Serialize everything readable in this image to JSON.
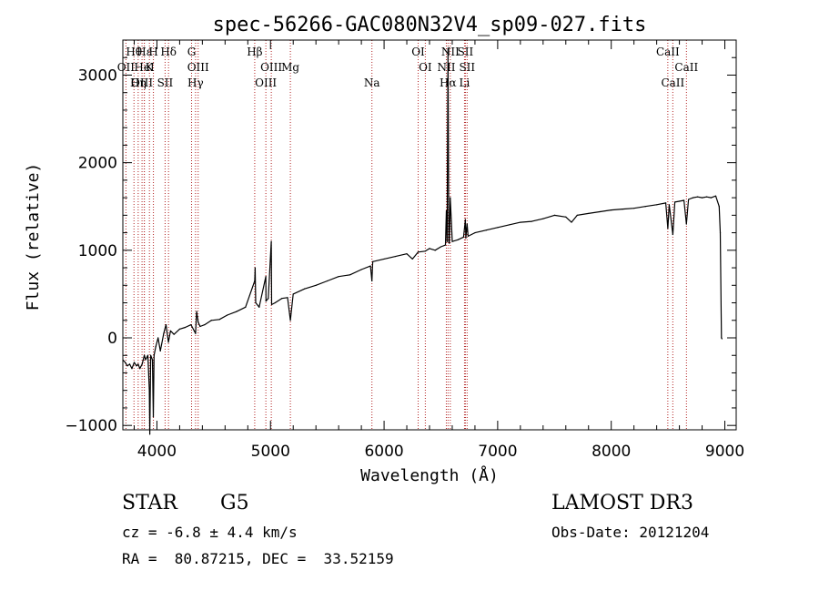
{
  "chart_data": {
    "type": "line",
    "title": "spec-56266-GAC080N32V4_sp09-027.fits",
    "xlabel": "Wavelength (Å)",
    "ylabel": "Flux (relative)",
    "xlim": [
      3700,
      9100
    ],
    "ylim": [
      -1050,
      3400
    ],
    "xticks": [
      4000,
      5000,
      6000,
      7000,
      8000,
      9000
    ],
    "yticks": [
      -1000,
      0,
      1000,
      2000,
      3000
    ],
    "line_color": "#000000",
    "marker_color": "#b22222",
    "series": [
      {
        "name": "flux",
        "x": [
          3700,
          3720,
          3740,
          3760,
          3780,
          3800,
          3820,
          3835,
          3850,
          3870,
          3889,
          3900,
          3920,
          3933,
          3937,
          3945,
          3960,
          3968,
          3975,
          3990,
          4010,
          4030,
          4060,
          4080,
          4101,
          4120,
          4150,
          4200,
          4250,
          4300,
          4340,
          4350,
          4363,
          4380,
          4420,
          4480,
          4550,
          4620,
          4700,
          4780,
          4861,
          4865,
          4870,
          4900,
          4959,
          4960,
          4980,
          5007,
          5010,
          5040,
          5100,
          5150,
          5175,
          5200,
          5300,
          5400,
          5500,
          5600,
          5700,
          5800,
          5880,
          5893,
          5900,
          6000,
          6100,
          6200,
          6250,
          6300,
          6363,
          6400,
          6450,
          6500,
          6540,
          6548,
          6555,
          6563,
          6570,
          6575,
          6583,
          6600,
          6650,
          6700,
          6716,
          6720,
          6731,
          6740,
          6800,
          6900,
          7000,
          7100,
          7200,
          7300,
          7400,
          7500,
          7600,
          7650,
          7700,
          7800,
          7900,
          8000,
          8100,
          8200,
          8300,
          8400,
          8480,
          8498,
          8510,
          8542,
          8560,
          8600,
          8640,
          8662,
          8680,
          8720,
          8760,
          8800,
          8840,
          8880,
          8920,
          8950,
          8960,
          8970,
          8975
        ],
        "values": [
          -250,
          -280,
          -320,
          -300,
          -350,
          -280,
          -320,
          -300,
          -350,
          -300,
          -200,
          -250,
          -200,
          -600,
          -1100,
          -200,
          -250,
          -900,
          -200,
          -100,
          0,
          -150,
          50,
          150,
          -50,
          80,
          40,
          100,
          120,
          150,
          50,
          300,
          180,
          130,
          150,
          200,
          210,
          260,
          300,
          350,
          650,
          800,
          400,
          350,
          700,
          420,
          450,
          1100,
          380,
          400,
          450,
          460,
          200,
          500,
          560,
          600,
          650,
          700,
          720,
          780,
          820,
          650,
          870,
          900,
          930,
          960,
          900,
          980,
          990,
          1020,
          1000,
          1040,
          1060,
          1450,
          1100,
          3300,
          1100,
          1080,
          1600,
          1100,
          1120,
          1150,
          1350,
          1140,
          1300,
          1160,
          1200,
          1230,
          1260,
          1290,
          1320,
          1330,
          1360,
          1400,
          1380,
          1320,
          1400,
          1420,
          1440,
          1460,
          1470,
          1480,
          1500,
          1520,
          1540,
          1250,
          1520,
          1180,
          1550,
          1560,
          1570,
          1300,
          1580,
          1600,
          1610,
          1600,
          1610,
          1600,
          1620,
          1500,
          1200,
          0,
          -10
        ]
      }
    ],
    "lines": [
      {
        "label": "Hθ",
        "x": 3798
      },
      {
        "label": "OII",
        "x": 3727
      },
      {
        "label": "OIII",
        "x": 3869
      },
      {
        "label": "Hε",
        "x": 3889
      },
      {
        "label": "K",
        "x": 3934
      },
      {
        "label": "Hη",
        "x": 3835
      },
      {
        "label": "H",
        "x": 3969
      },
      {
        "label": "HeI",
        "x": 3889
      },
      {
        "label": "SII",
        "x": 4072
      },
      {
        "label": "Hδ",
        "x": 4102
      },
      {
        "label": "OIII",
        "x": 4363
      },
      {
        "label": "Hγ",
        "x": 4340
      },
      {
        "label": "G",
        "x": 4305
      },
      {
        "label": "OIII",
        "x": 5007
      },
      {
        "label": "OIII",
        "x": 4959
      },
      {
        "label": "Hβ",
        "x": 4861
      },
      {
        "label": "Mg",
        "x": 5175
      },
      {
        "label": "Na",
        "x": 5893
      },
      {
        "label": "OI",
        "x": 6300
      },
      {
        "label": "OI",
        "x": 6363
      },
      {
        "label": "Hα",
        "x": 6563
      },
      {
        "label": "SII",
        "x": 6716
      },
      {
        "label": "NII",
        "x": 6548
      },
      {
        "label": "Li",
        "x": 6708
      },
      {
        "label": "NII",
        "x": 6583
      },
      {
        "label": "SII",
        "x": 6731
      },
      {
        "label": "CaII",
        "x": 8542
      },
      {
        "label": "CaII",
        "x": 8498
      },
      {
        "label": "CaII",
        "x": 8662
      }
    ]
  },
  "info": {
    "object_class": "STAR",
    "subclass": "G5",
    "survey": "LAMOST DR3",
    "velocity": "cz = -6.8 ± 4.4 km/s",
    "obs_date": "Obs-Date: 20121204",
    "coords": "RA =  80.87215, DEC =  33.52159"
  }
}
